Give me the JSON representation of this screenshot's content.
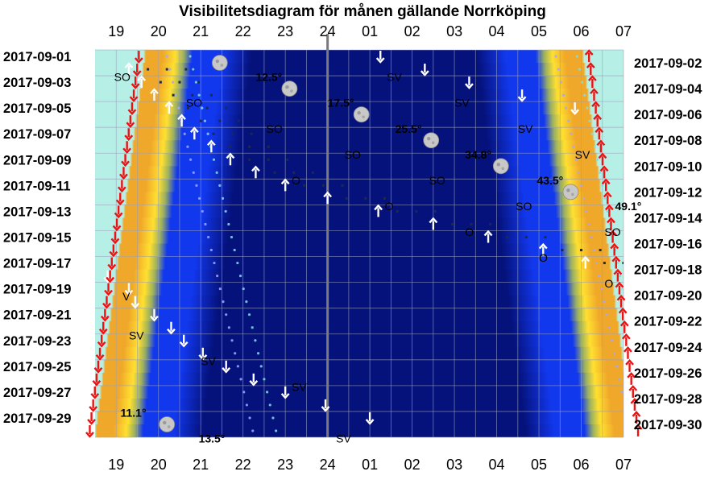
{
  "chart_data": {
    "type": "heatmap",
    "title": "Visibilitetsdiagram för månen gällande Norrköping",
    "x_ticks": [
      "19",
      "20",
      "21",
      "22",
      "23",
      "24",
      "01",
      "02",
      "03",
      "04",
      "05",
      "06",
      "07"
    ],
    "x_range_hours": [
      18.5,
      31.0
    ],
    "left_dates": [
      "2017-09-01",
      "2017-09-03",
      "2017-09-05",
      "2017-09-07",
      "2017-09-09",
      "2017-09-11",
      "2017-09-13",
      "2017-09-15",
      "2017-09-17",
      "2017-09-19",
      "2017-09-21",
      "2017-09-23",
      "2017-09-25",
      "2017-09-27",
      "2017-09-29"
    ],
    "right_dates": [
      "2017-09-02",
      "2017-09-04",
      "2017-09-06",
      "2017-09-08",
      "2017-09-10",
      "2017-09-12",
      "2017-09-14",
      "2017-09-16",
      "2017-09-18",
      "2017-09-20",
      "2017-09-22",
      "2017-09-24",
      "2017-09-26",
      "2017-09-28",
      "2017-09-30"
    ],
    "days": 30,
    "colors": {
      "daylight": "#b6efe6",
      "twilight_orange": "#f0a82a",
      "twilight_yellow": "#ffe030",
      "night_blue": "#1238ee",
      "deep_night": "#05127c",
      "sun_arrow": "#ee1111",
      "moon_arrow": "#ffffff",
      "grid": "#9aa0b8",
      "midnight_line": "#7a7a7a"
    },
    "sunset": [
      19.65,
      19.61,
      19.57,
      19.53,
      19.49,
      19.45,
      19.41,
      19.37,
      19.33,
      19.29,
      19.25,
      19.21,
      19.17,
      19.13,
      19.09,
      19.05,
      19.01,
      18.97,
      18.93,
      18.89,
      18.85,
      18.81,
      18.77,
      18.73,
      18.69,
      18.65,
      18.61,
      18.57,
      18.53,
      18.49
    ],
    "sunrise": [
      30.07,
      30.11,
      30.15,
      30.19,
      30.23,
      30.27,
      30.31,
      30.35,
      30.39,
      30.43,
      30.47,
      30.51,
      30.55,
      30.59,
      30.63,
      30.67,
      30.71,
      30.75,
      30.79,
      30.83,
      30.87,
      30.91,
      30.95,
      30.99,
      31.03,
      31.07,
      31.11,
      31.15,
      31.19,
      31.23
    ],
    "moon_phase_symbols": [
      {
        "day": 1,
        "hour": 21.45
      },
      {
        "day": 3,
        "hour": 23.1
      },
      {
        "day": 5,
        "hour": 24.8
      },
      {
        "day": 7,
        "hour": 26.45
      },
      {
        "day": 9,
        "hour": 28.1
      },
      {
        "day": 11,
        "hour": 29.75
      },
      {
        "day": 29,
        "hour": 20.2
      }
    ],
    "altitude_labels": [
      {
        "text": "12.5°",
        "day": 1.6,
        "hour": 22.3
      },
      {
        "text": "17.5°",
        "day": 3.6,
        "hour": 24.0
      },
      {
        "text": "25.5°",
        "day": 5.6,
        "hour": 25.6
      },
      {
        "text": "34.8°",
        "day": 7.6,
        "hour": 27.25
      },
      {
        "text": "43.5°",
        "day": 9.6,
        "hour": 28.95
      },
      {
        "text": "49.1°",
        "day": 11.6,
        "hour": 30.8
      },
      {
        "text": "11.1°",
        "day": 27.6,
        "hour": 19.1
      },
      {
        "text": "13.5°",
        "day": 29.6,
        "hour": 20.95
      }
    ],
    "direction_labels": [
      {
        "text": "SO",
        "day": 1.6,
        "hour": 18.95
      },
      {
        "text": "SV",
        "day": 1.6,
        "hour": 25.4
      },
      {
        "text": "SO",
        "day": 3.6,
        "hour": 20.65
      },
      {
        "text": "SV",
        "day": 3.6,
        "hour": 27.0
      },
      {
        "text": "SO",
        "day": 5.6,
        "hour": 22.55
      },
      {
        "text": "SV",
        "day": 5.6,
        "hour": 28.5
      },
      {
        "text": "SO",
        "day": 7.6,
        "hour": 24.4
      },
      {
        "text": "SV",
        "day": 7.6,
        "hour": 29.85
      },
      {
        "text": "O",
        "day": 9.6,
        "hour": 23.15
      },
      {
        "text": "SO",
        "day": 9.6,
        "hour": 26.4
      },
      {
        "text": "SO",
        "day": 11.6,
        "hour": 28.45
      },
      {
        "text": "O",
        "day": 11.6,
        "hour": 25.35
      },
      {
        "text": "O",
        "day": 13.6,
        "hour": 27.25
      },
      {
        "text": "SO",
        "day": 13.6,
        "hour": 30.55
      },
      {
        "text": "O",
        "day": 15.6,
        "hour": 29.0
      },
      {
        "text": "O",
        "day": 17.6,
        "hour": 30.55
      },
      {
        "text": "V",
        "day": 18.6,
        "hour": 19.15
      },
      {
        "text": "SV",
        "day": 21.6,
        "hour": 19.3
      },
      {
        "text": "SV",
        "day": 23.6,
        "hour": 21.0
      },
      {
        "text": "SV",
        "day": 25.6,
        "hour": 23.15
      },
      {
        "text": "SV",
        "day": 29.6,
        "hour": 24.2
      }
    ],
    "moonrise": [
      {
        "day": 2,
        "hour": 19.3
      },
      {
        "day": 3,
        "hour": 19.6
      },
      {
        "day": 4,
        "hour": 19.9
      },
      {
        "day": 5,
        "hour": 20.25
      },
      {
        "day": 6,
        "hour": 20.55
      },
      {
        "day": 7,
        "hour": 20.85
      },
      {
        "day": 8,
        "hour": 21.25
      },
      {
        "day": 9,
        "hour": 21.7
      },
      {
        "day": 10,
        "hour": 22.3
      },
      {
        "day": 11,
        "hour": 23.0
      },
      {
        "day": 12,
        "hour": 24.0
      },
      {
        "day": 13,
        "hour": 25.2
      },
      {
        "day": 14,
        "hour": 26.5
      },
      {
        "day": 15,
        "hour": 27.8
      },
      {
        "day": 16,
        "hour": 29.1
      },
      {
        "day": 17,
        "hour": 30.1
      }
    ],
    "moonset": [
      {
        "day": 1,
        "hour": 25.25
      },
      {
        "day": 2,
        "hour": 26.3
      },
      {
        "day": 3,
        "hour": 27.35
      },
      {
        "day": 4,
        "hour": 28.6
      },
      {
        "day": 5,
        "hour": 29.85
      },
      {
        "day": 18,
        "hour": 18.8
      },
      {
        "day": 19,
        "hour": 19.3
      },
      {
        "day": 20,
        "hour": 19.45
      },
      {
        "day": 21,
        "hour": 19.9
      },
      {
        "day": 22,
        "hour": 20.3
      },
      {
        "day": 23,
        "hour": 20.6
      },
      {
        "day": 24,
        "hour": 21.05
      },
      {
        "day": 25,
        "hour": 21.6
      },
      {
        "day": 26,
        "hour": 22.25
      },
      {
        "day": 27,
        "hour": 23.0
      },
      {
        "day": 28,
        "hour": 23.95
      },
      {
        "day": 29,
        "hour": 25.0
      }
    ]
  }
}
